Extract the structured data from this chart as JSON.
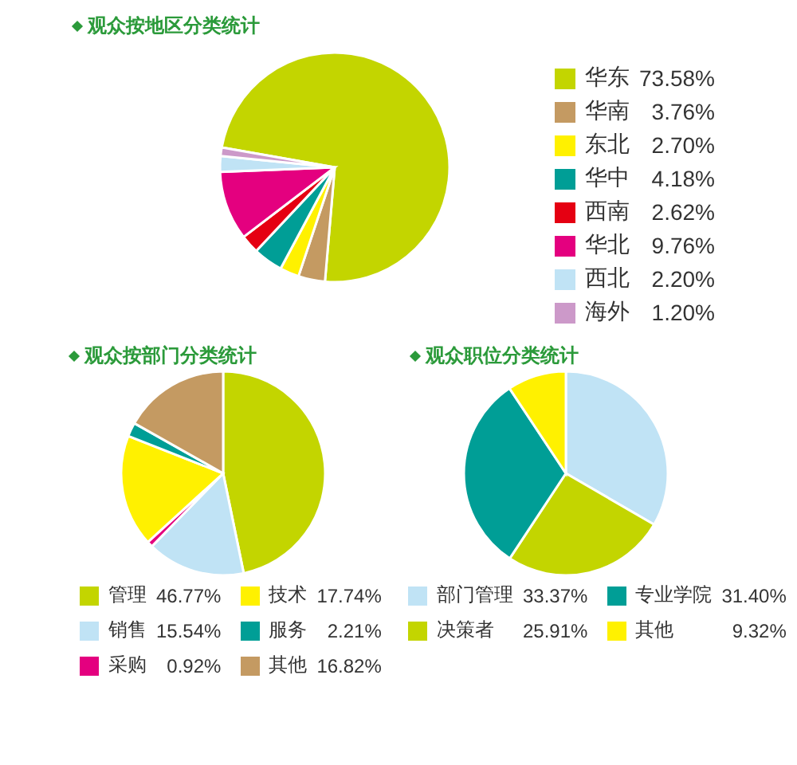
{
  "chart_data": [
    {
      "type": "pie",
      "title": "观众按地区分类统计",
      "categories": [
        "华东",
        "华南",
        "东北",
        "华中",
        "西南",
        "华北",
        "西北",
        "海外"
      ],
      "values": [
        73.58,
        3.76,
        2.7,
        4.18,
        2.62,
        9.76,
        2.2,
        1.2
      ],
      "value_labels": [
        "73.58%",
        "3.76%",
        "2.70%",
        "4.18%",
        "2.62%",
        "9.76%",
        "2.20%",
        "1.20%"
      ],
      "colors": [
        "#c3d500",
        "#c49a62",
        "#fff100",
        "#009e96",
        "#e50012",
        "#e4007f",
        "#c0e3f5",
        "#cc99c9"
      ],
      "legend": "right"
    },
    {
      "type": "pie",
      "title": "观众按部门分类统计",
      "categories": [
        "管理",
        "销售",
        "采购",
        "技术",
        "服务",
        "其他"
      ],
      "values": [
        46.77,
        15.54,
        0.92,
        17.74,
        2.21,
        16.82
      ],
      "value_labels": [
        "46.77%",
        "15.54%",
        "0.92%",
        "17.74%",
        "2.21%",
        "16.82%"
      ],
      "colors": [
        "#c3d500",
        "#c0e3f5",
        "#e4007f",
        "#fff100",
        "#009e96",
        "#c49a62"
      ],
      "legend": "bottom"
    },
    {
      "type": "pie",
      "title": "观众职位分类统计",
      "categories": [
        "部门管理",
        "决策者",
        "专业学院",
        "其他"
      ],
      "values": [
        33.37,
        25.91,
        31.4,
        9.32
      ],
      "value_labels": [
        "33.37%",
        "25.91%",
        "31.40%",
        "9.32%"
      ],
      "colors": [
        "#c0e3f5",
        "#c3d500",
        "#009e96",
        "#fff100"
      ],
      "legend": "bottom"
    }
  ]
}
